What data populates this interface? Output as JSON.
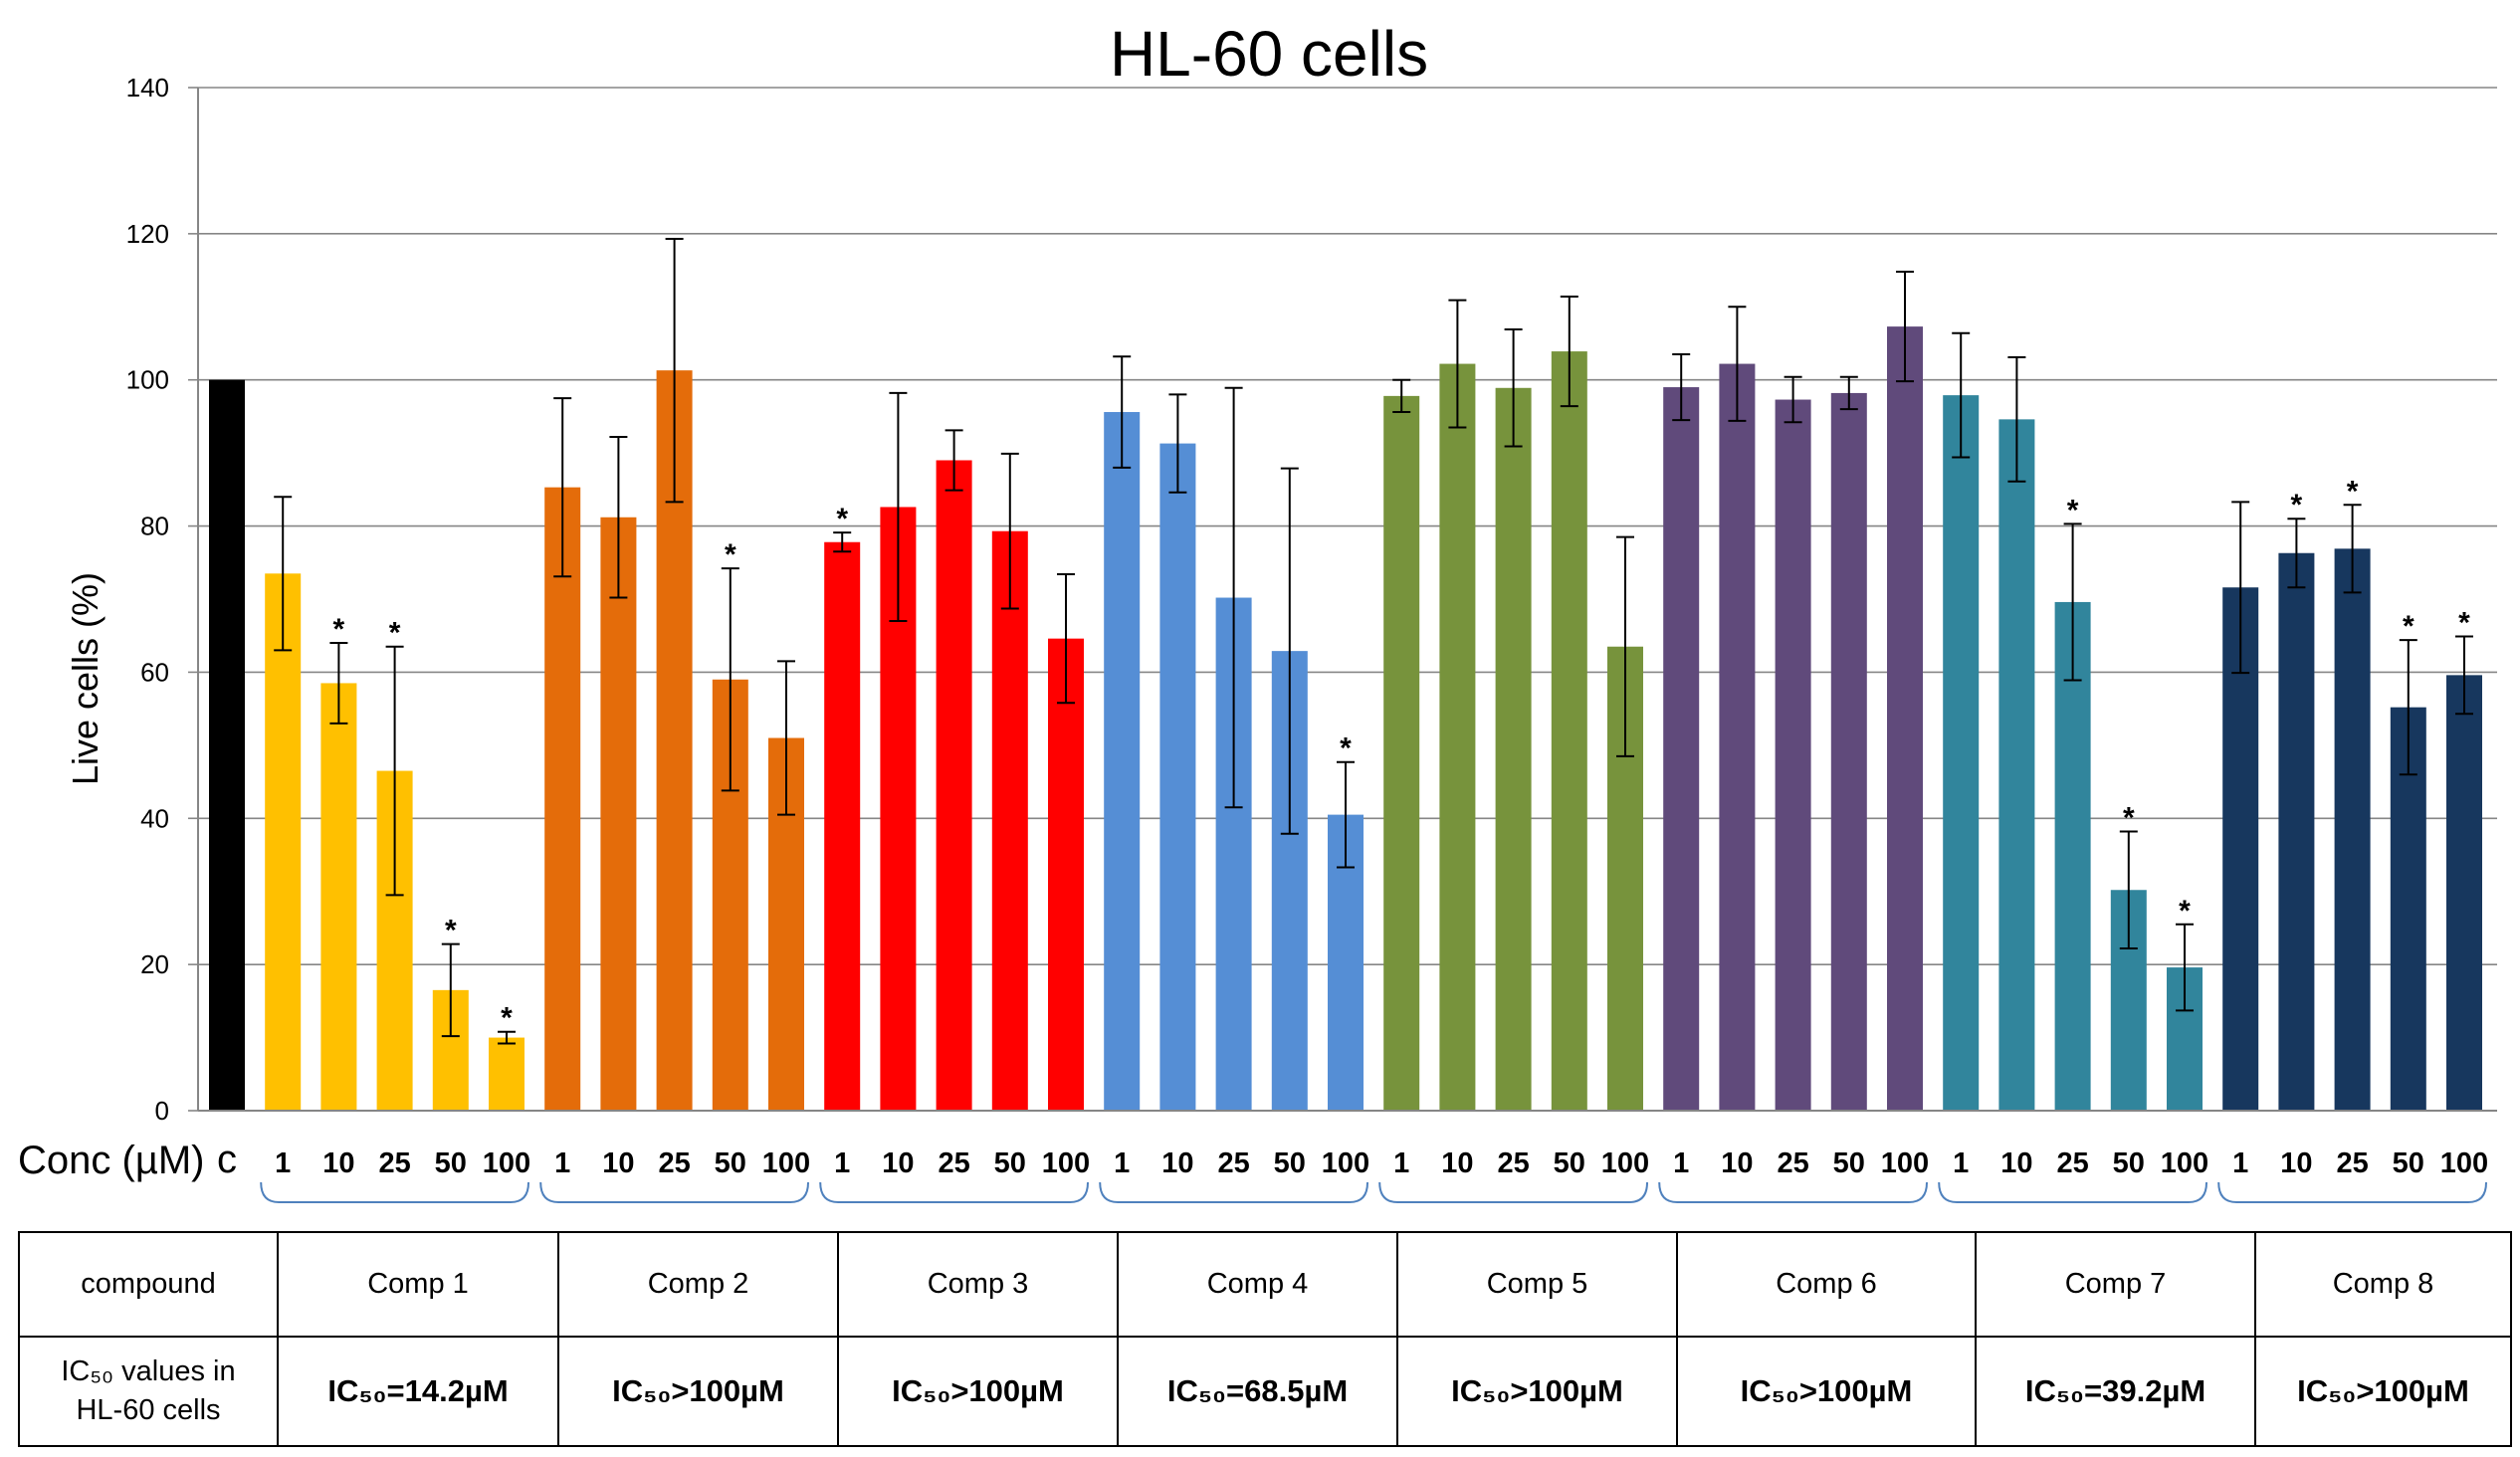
{
  "chart_data": {
    "type": "bar",
    "title": "HL-60 cells",
    "ylabel": "Live cells (%)",
    "xlabel_prefix": "Conc (µM)",
    "ylim": [
      0,
      140
    ],
    "yticks": [
      0,
      20,
      40,
      60,
      80,
      100,
      120,
      140
    ],
    "grid": true,
    "control": {
      "label": "c",
      "value": 100,
      "color": "#000000"
    },
    "groups": [
      {
        "name": "Comp 1",
        "color": "#FFC000",
        "ic50": "IC₅₀=14.2µM",
        "bars": [
          {
            "conc": "1",
            "value": 73.5,
            "err": 10.5,
            "sig": false
          },
          {
            "conc": "10",
            "value": 58.5,
            "err": 5.5,
            "sig": true
          },
          {
            "conc": "25",
            "value": 46.5,
            "err": 17.0,
            "sig": true
          },
          {
            "conc": "50",
            "value": 16.5,
            "err": 6.3,
            "sig": true
          },
          {
            "conc": "100",
            "value": 10.0,
            "err": 0.8,
            "sig": true
          }
        ]
      },
      {
        "name": "Comp 2",
        "color": "#E46C0A",
        "ic50": "IC₅₀>100µM",
        "bars": [
          {
            "conc": "1",
            "value": 85.3,
            "err": 12.2,
            "sig": false
          },
          {
            "conc": "10",
            "value": 81.2,
            "err": 11.0,
            "sig": false
          },
          {
            "conc": "25",
            "value": 101.3,
            "err": 18.0,
            "sig": false
          },
          {
            "conc": "50",
            "value": 59.0,
            "err": 15.2,
            "sig": true
          },
          {
            "conc": "100",
            "value": 51.0,
            "err": 10.5,
            "sig": false
          }
        ]
      },
      {
        "name": "Comp 3",
        "color": "#FF0000",
        "ic50": "IC₅₀>100µM",
        "bars": [
          {
            "conc": "1",
            "value": 77.8,
            "err": 1.3,
            "sig": true
          },
          {
            "conc": "10",
            "value": 82.6,
            "err": 15.6,
            "sig": false
          },
          {
            "conc": "25",
            "value": 89.0,
            "err": 4.1,
            "sig": false
          },
          {
            "conc": "50",
            "value": 79.3,
            "err": 10.6,
            "sig": false
          },
          {
            "conc": "100",
            "value": 64.6,
            "err": 8.8,
            "sig": false
          }
        ]
      },
      {
        "name": "Comp 4",
        "color": "#558ED5",
        "ic50": "IC₅₀=68.5µM",
        "bars": [
          {
            "conc": "1",
            "value": 95.6,
            "err": 7.6,
            "sig": false
          },
          {
            "conc": "10",
            "value": 91.3,
            "err": 6.7,
            "sig": false
          },
          {
            "conc": "25",
            "value": 70.2,
            "err": 28.7,
            "sig": false
          },
          {
            "conc": "50",
            "value": 62.9,
            "err": 25.0,
            "sig": false
          },
          {
            "conc": "100",
            "value": 40.5,
            "err": 7.2,
            "sig": true
          }
        ]
      },
      {
        "name": "Comp 5",
        "color": "#77933C",
        "ic50": "IC₅₀>100µM",
        "bars": [
          {
            "conc": "1",
            "value": 97.8,
            "err": 2.2,
            "sig": false
          },
          {
            "conc": "10",
            "value": 102.2,
            "err": 8.7,
            "sig": false
          },
          {
            "conc": "25",
            "value": 98.9,
            "err": 8.0,
            "sig": false
          },
          {
            "conc": "50",
            "value": 103.9,
            "err": 7.5,
            "sig": false
          },
          {
            "conc": "100",
            "value": 63.5,
            "err": 15.0,
            "sig": false
          }
        ]
      },
      {
        "name": "Comp 6",
        "color": "#604A7B",
        "ic50": "IC₅₀>100µM",
        "bars": [
          {
            "conc": "1",
            "value": 99.0,
            "err": 4.5,
            "sig": false
          },
          {
            "conc": "10",
            "value": 102.2,
            "err": 7.8,
            "sig": false
          },
          {
            "conc": "25",
            "value": 97.3,
            "err": 3.1,
            "sig": false
          },
          {
            "conc": "50",
            "value": 98.2,
            "err": 2.2,
            "sig": false
          },
          {
            "conc": "100",
            "value": 107.3,
            "err": 7.5,
            "sig": false
          }
        ]
      },
      {
        "name": "Comp 7",
        "color": "#31859C",
        "ic50": "IC₅₀=39.2µM",
        "bars": [
          {
            "conc": "1",
            "value": 97.9,
            "err": 8.5,
            "sig": false
          },
          {
            "conc": "10",
            "value": 94.6,
            "err": 8.5,
            "sig": false
          },
          {
            "conc": "25",
            "value": 69.6,
            "err": 10.7,
            "sig": true
          },
          {
            "conc": "50",
            "value": 30.2,
            "err": 8.0,
            "sig": true
          },
          {
            "conc": "100",
            "value": 19.6,
            "err": 5.9,
            "sig": true
          }
        ]
      },
      {
        "name": "Comp 8",
        "color": "#17375E",
        "ic50": "IC₅₀>100µM",
        "bars": [
          {
            "conc": "1",
            "value": 71.6,
            "err": 11.7,
            "sig": false
          },
          {
            "conc": "10",
            "value": 76.3,
            "err": 4.7,
            "sig": true
          },
          {
            "conc": "25",
            "value": 76.9,
            "err": 6.0,
            "sig": true
          },
          {
            "conc": "50",
            "value": 55.2,
            "err": 9.2,
            "sig": true
          },
          {
            "conc": "100",
            "value": 59.6,
            "err": 5.3,
            "sig": true
          }
        ]
      }
    ],
    "significance_marker": "*",
    "bracket_color": "#4F81BD"
  },
  "table": {
    "row1_header": "compound",
    "row2_header_line1": "IC₅₀ values in",
    "row2_header_line2": "HL-60 cells",
    "compounds": [
      "Comp 1",
      "Comp 2",
      "Comp 3",
      "Comp 4",
      "Comp 5",
      "Comp 6",
      "Comp 7",
      "Comp 8"
    ],
    "ic50_values": [
      "IC₅₀=14.2µM",
      "IC₅₀>100µM",
      "IC₅₀>100µM",
      "IC₅₀=68.5µM",
      "IC₅₀>100µM",
      "IC₅₀>100µM",
      "IC₅₀=39.2µM",
      "IC₅₀>100µM"
    ]
  }
}
